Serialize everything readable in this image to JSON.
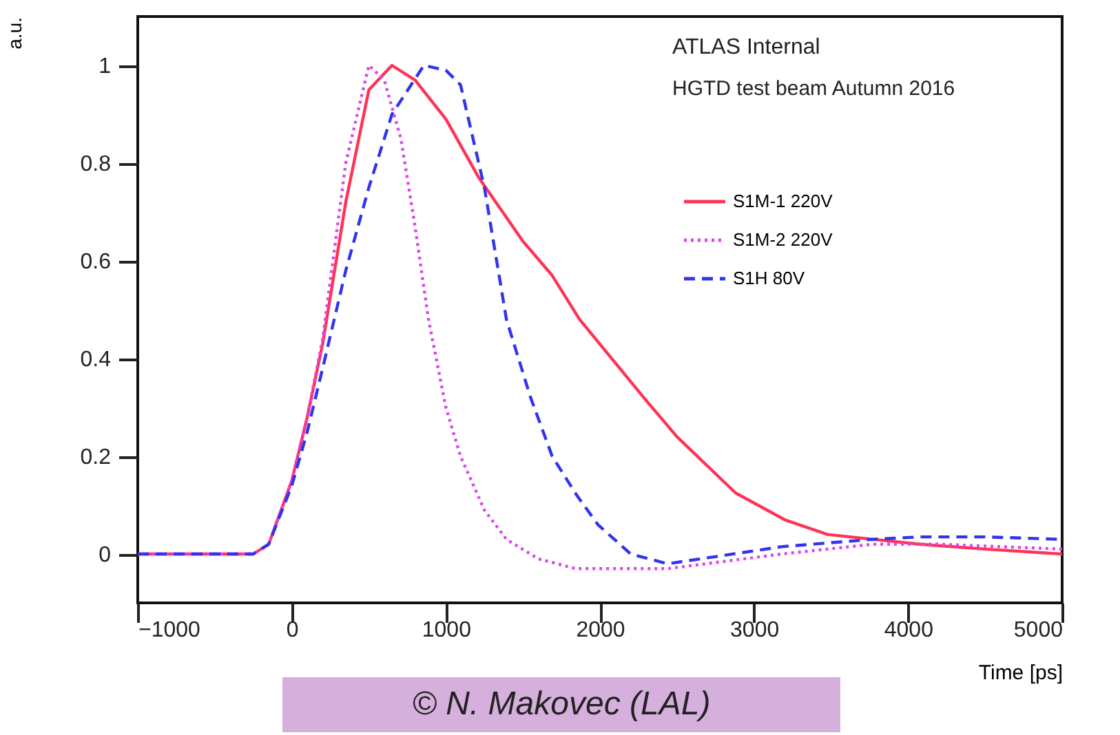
{
  "chart_data": {
    "type": "line",
    "xlabel": "Time [ps]",
    "ylabel": "a.u.",
    "annotations": [
      "ATLAS Internal",
      "HGTD test beam Autumn 2016",
      "© N. Makovec (LAL)"
    ],
    "xlim": [
      -1000,
      5000
    ],
    "xticks": [
      -1000,
      0,
      1000,
      2000,
      3000,
      4000,
      5000
    ],
    "ylim": [
      -0.1,
      1.1
    ],
    "yticks": [
      0,
      0.2,
      0.4,
      0.6,
      0.8,
      1
    ],
    "grid": false,
    "legend": "top right",
    "marker": "none",
    "series": [
      {
        "name": "S1M-1 220V",
        "color": "#ff3355",
        "line_style": "solid",
        "x": [
          -1000,
          -500,
          -250,
          -150,
          0,
          100,
          200,
          350,
          500,
          650,
          800,
          1000,
          1214,
          1500,
          1690,
          1868,
          2285,
          2500,
          2880,
          3200,
          3477,
          4075,
          4500,
          5000
        ],
        "values": [
          0,
          0,
          0,
          0.02,
          0.15,
          0.28,
          0.43,
          0.72,
          0.95,
          1.0,
          0.97,
          0.89,
          0.77,
          0.64,
          0.57,
          0.48,
          0.32,
          0.24,
          0.125,
          0.07,
          0.04,
          0.02,
          0.01,
          0
        ]
      },
      {
        "name": "S1M-2 220V",
        "color": "#dd44ee",
        "line_style": "dotted",
        "x": [
          -1000,
          -500,
          -250,
          -150,
          0,
          100,
          200,
          350,
          500,
          600,
          708,
          800,
          887,
          1000,
          1095,
          1250,
          1393,
          1600,
          1845,
          2440,
          3180,
          3770,
          4200,
          5000
        ],
        "values": [
          0,
          0,
          0,
          0.02,
          0.15,
          0.28,
          0.44,
          0.8,
          1.0,
          0.97,
          0.85,
          0.67,
          0.48,
          0.3,
          0.2,
          0.09,
          0.03,
          -0.01,
          -0.03,
          -0.03,
          0,
          0.02,
          0.02,
          0.01
        ]
      },
      {
        "name": "S1H 80V",
        "color": "#3333ee",
        "line_style": "dashed",
        "x": [
          -1000,
          -500,
          -250,
          -150,
          0,
          100,
          200,
          350,
          500,
          650,
          857,
          1000,
          1095,
          1250,
          1393,
          1550,
          1690,
          1850,
          1987,
          2200,
          2440,
          3180,
          3770,
          4075,
          4500,
          5000
        ],
        "values": [
          0,
          0,
          0,
          0.02,
          0.14,
          0.25,
          0.38,
          0.58,
          0.75,
          0.9,
          1.0,
          0.99,
          0.96,
          0.75,
          0.48,
          0.32,
          0.2,
          0.12,
          0.06,
          0.0,
          -0.02,
          0.015,
          0.03,
          0.035,
          0.035,
          0.03
        ]
      }
    ]
  }
}
